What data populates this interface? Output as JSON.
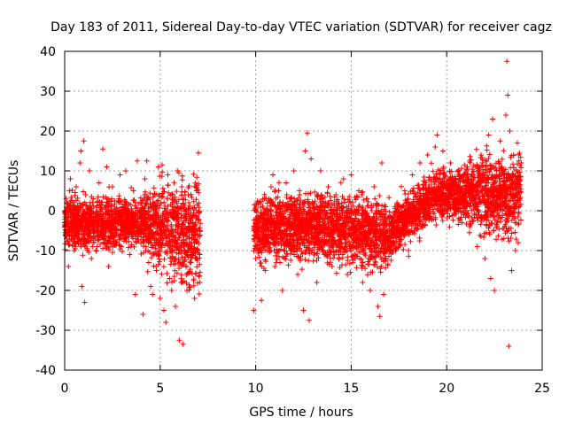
{
  "chart_data": {
    "type": "scatter",
    "title": "Day 183 of 2011, Sidereal Day-to-day VTEC variation (SDTVAR) for receiver cagz",
    "xlabel": "GPS time / hours",
    "ylabel": "SDTVAR / TECUs",
    "xlim": [
      0,
      25
    ],
    "ylim": [
      -40,
      40
    ],
    "xticks": [
      0,
      5,
      10,
      15,
      20,
      25
    ],
    "yticks": [
      -40,
      -30,
      -20,
      -10,
      0,
      10,
      20,
      30,
      40
    ],
    "grid": true,
    "marker": "+",
    "series": [
      {
        "name": "SDTVAR",
        "color": "#ff0000",
        "coverage_hours": [
          [
            0,
            7.1
          ],
          [
            9.9,
            23.9
          ]
        ],
        "points": [
          [
            0.0,
            -3
          ],
          [
            0.1,
            2
          ],
          [
            0.15,
            -8
          ],
          [
            0.2,
            -14
          ],
          [
            0.25,
            5
          ],
          [
            0.3,
            8
          ],
          [
            0.4,
            -4
          ],
          [
            0.5,
            -10
          ],
          [
            0.6,
            6
          ],
          [
            0.7,
            -2
          ],
          [
            0.8,
            12
          ],
          [
            0.85,
            15
          ],
          [
            0.9,
            -19
          ],
          [
            1.0,
            17.5
          ],
          [
            1.05,
            -23
          ],
          [
            1.1,
            4
          ],
          [
            1.2,
            -6
          ],
          [
            1.3,
            10
          ],
          [
            1.4,
            -12
          ],
          [
            1.5,
            3
          ],
          [
            1.7,
            -9
          ],
          [
            1.8,
            7
          ],
          [
            2.0,
            15.5
          ],
          [
            2.1,
            -3
          ],
          [
            2.2,
            11
          ],
          [
            2.3,
            -14
          ],
          [
            2.5,
            6
          ],
          [
            2.7,
            -8
          ],
          [
            2.9,
            9
          ],
          [
            3.0,
            -5
          ],
          [
            3.2,
            10
          ],
          [
            3.4,
            -11
          ],
          [
            3.6,
            5
          ],
          [
            3.7,
            -21
          ],
          [
            3.8,
            12.5
          ],
          [
            4.0,
            -6
          ],
          [
            4.1,
            -26
          ],
          [
            4.2,
            8
          ],
          [
            4.3,
            12.5
          ],
          [
            4.4,
            -13
          ],
          [
            4.5,
            -19
          ],
          [
            4.6,
            -21
          ],
          [
            4.7,
            4
          ],
          [
            4.8,
            -15
          ],
          [
            4.9,
            11
          ],
          [
            5.0,
            -22
          ],
          [
            5.1,
            11.5
          ],
          [
            5.2,
            -25
          ],
          [
            5.3,
            -28
          ],
          [
            5.4,
            9
          ],
          [
            5.5,
            -17
          ],
          [
            5.6,
            -20
          ],
          [
            5.8,
            -24
          ],
          [
            5.9,
            10
          ],
          [
            6.0,
            -32.5
          ],
          [
            6.1,
            -18
          ],
          [
            6.2,
            -33.5
          ],
          [
            6.3,
            4
          ],
          [
            6.4,
            -20
          ],
          [
            6.5,
            2
          ],
          [
            6.6,
            -10
          ],
          [
            6.8,
            -22
          ],
          [
            6.9,
            5
          ],
          [
            7.0,
            14.5
          ],
          [
            9.9,
            -25
          ],
          [
            10.0,
            -12
          ],
          [
            10.1,
            -6
          ],
          [
            10.2,
            -2
          ],
          [
            10.3,
            -22.5
          ],
          [
            10.4,
            -8
          ],
          [
            10.5,
            -15
          ],
          [
            10.6,
            -4
          ],
          [
            10.7,
            3
          ],
          [
            10.8,
            -10
          ],
          [
            10.9,
            9
          ],
          [
            11.0,
            -14
          ],
          [
            11.2,
            5
          ],
          [
            11.4,
            -20
          ],
          [
            11.6,
            7
          ],
          [
            11.8,
            -8
          ],
          [
            12.0,
            10
          ],
          [
            12.2,
            -16
          ],
          [
            12.3,
            4
          ],
          [
            12.5,
            -25
          ],
          [
            12.6,
            15
          ],
          [
            12.7,
            19.5
          ],
          [
            12.8,
            -27.5
          ],
          [
            12.9,
            13
          ],
          [
            13.0,
            -2
          ],
          [
            13.2,
            -18
          ],
          [
            13.4,
            10
          ],
          [
            13.6,
            -11
          ],
          [
            13.8,
            6
          ],
          [
            14.0,
            -14
          ],
          [
            14.2,
            4
          ],
          [
            14.4,
            -9
          ],
          [
            14.6,
            8
          ],
          [
            14.8,
            -16
          ],
          [
            15.0,
            9
          ],
          [
            15.2,
            -12
          ],
          [
            15.4,
            5
          ],
          [
            15.6,
            -18
          ],
          [
            15.8,
            3
          ],
          [
            16.0,
            -20
          ],
          [
            16.2,
            6
          ],
          [
            16.4,
            -24
          ],
          [
            16.5,
            -26.5
          ],
          [
            16.6,
            12
          ],
          [
            16.7,
            -21
          ],
          [
            16.8,
            1
          ],
          [
            17.0,
            -9
          ],
          [
            17.2,
            -3
          ],
          [
            17.4,
            2
          ],
          [
            17.6,
            -6
          ],
          [
            17.8,
            5
          ],
          [
            18.0,
            -10
          ],
          [
            18.2,
            9
          ],
          [
            18.4,
            0
          ],
          [
            18.6,
            12
          ],
          [
            18.8,
            3
          ],
          [
            19.0,
            14
          ],
          [
            19.2,
            -2
          ],
          [
            19.4,
            16
          ],
          [
            19.5,
            19
          ],
          [
            19.6,
            6
          ],
          [
            19.8,
            15
          ],
          [
            20.0,
            2
          ],
          [
            20.2,
            12
          ],
          [
            20.4,
            -1
          ],
          [
            20.6,
            10
          ],
          [
            20.8,
            -3
          ],
          [
            21.0,
            9
          ],
          [
            21.2,
            -4
          ],
          [
            21.4,
            8
          ],
          [
            21.6,
            -9
          ],
          [
            21.8,
            14
          ],
          [
            22.0,
            -12
          ],
          [
            22.2,
            19
          ],
          [
            22.3,
            -17
          ],
          [
            22.4,
            23
          ],
          [
            22.5,
            -20
          ],
          [
            22.6,
            10
          ],
          [
            22.8,
            17.5
          ],
          [
            23.0,
            -7
          ],
          [
            23.1,
            24
          ],
          [
            23.15,
            37.5
          ],
          [
            23.2,
            29
          ],
          [
            23.25,
            -34
          ],
          [
            23.3,
            20
          ],
          [
            23.4,
            -15
          ],
          [
            23.5,
            14
          ],
          [
            23.6,
            -10
          ],
          [
            23.7,
            17
          ],
          [
            23.8,
            6
          ],
          [
            23.9,
            12
          ]
        ]
      }
    ]
  }
}
